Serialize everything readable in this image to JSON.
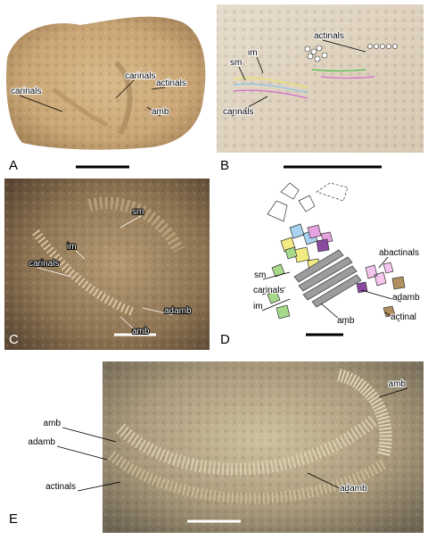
{
  "panels": [
    {
      "letter": "A",
      "labels": [
        "carinals",
        "carinals",
        "actinals",
        "amb"
      ]
    },
    {
      "letter": "B",
      "labels": [
        "actinals",
        "im",
        "sm",
        "carinals"
      ]
    },
    {
      "letter": "C",
      "labels": [
        "sm",
        "im",
        "carinals",
        "adamb",
        "amb"
      ]
    },
    {
      "letter": "D",
      "labels": [
        "abactinals",
        "sm",
        "carinals",
        "im",
        "adamb",
        "actinal",
        "amb"
      ]
    },
    {
      "letter": "E",
      "labels": [
        "amb",
        "amb",
        "adamb",
        "actinals",
        "adamb"
      ]
    }
  ]
}
